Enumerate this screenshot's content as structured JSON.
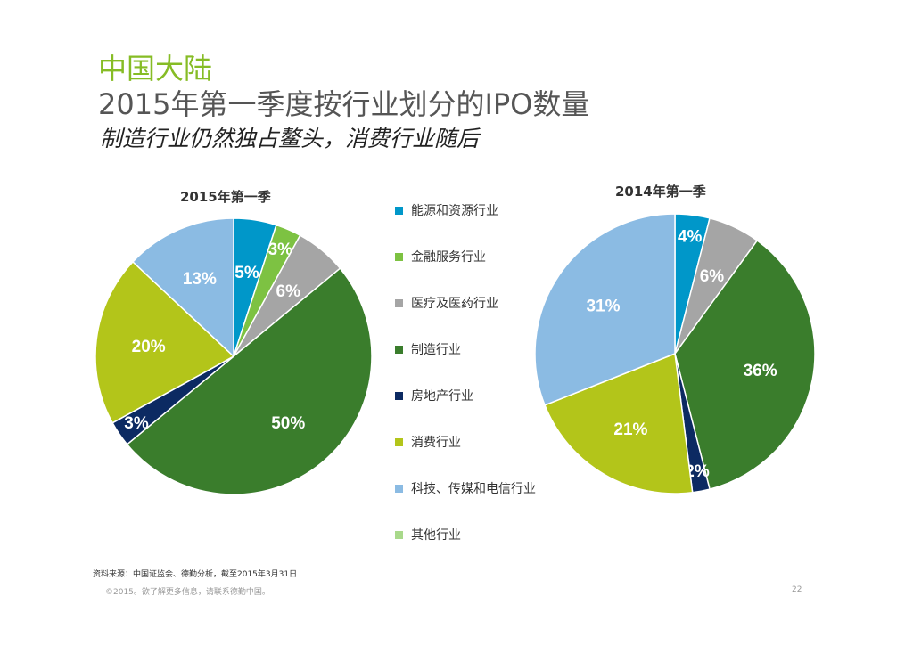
{
  "header": {
    "region": "中国大陆",
    "title": "2015年第一季度按行业划分的IPO数量",
    "subtitle": "制造行业仍然独占鳌头，消费行业随后"
  },
  "chart_data": [
    {
      "type": "pie",
      "title": "2015年第一季",
      "start": "top",
      "direction": "clockwise",
      "slices": [
        {
          "category": "能源和资源行业",
          "value": 5,
          "label": "5%",
          "color": "#0097c9"
        },
        {
          "category": "金融服务行业",
          "value": 3,
          "label": "3%",
          "color": "#7dc242"
        },
        {
          "category": "医疗及医药行业",
          "value": 6,
          "label": "6%",
          "color": "#a5a5a5"
        },
        {
          "category": "制造行业",
          "value": 50,
          "label": "50%",
          "color": "#3a7d2c"
        },
        {
          "category": "房地产行业",
          "value": 3,
          "label": "3%",
          "color": "#0c2a62"
        },
        {
          "category": "消费行业",
          "value": 20,
          "label": "20%",
          "color": "#b3c51a"
        },
        {
          "category": "科技、传媒和电信行业",
          "value": 13,
          "label": "13%",
          "color": "#8bbbe3"
        }
      ]
    },
    {
      "type": "pie",
      "title": "2014年第一季",
      "start": "top",
      "direction": "clockwise",
      "slices": [
        {
          "category": "能源和资源行业",
          "value": 4,
          "label": "4%",
          "color": "#0097c9"
        },
        {
          "category": "医疗及医药行业",
          "value": 6,
          "label": "6%",
          "color": "#a5a5a5"
        },
        {
          "category": "制造行业",
          "value": 36,
          "label": "36%",
          "color": "#3a7d2c"
        },
        {
          "category": "房地产行业",
          "value": 2,
          "label": "2%",
          "color": "#0c2a62"
        },
        {
          "category": "消费行业",
          "value": 21,
          "label": "21%",
          "color": "#b3c51a"
        },
        {
          "category": "科技、传媒和电信行业",
          "value": 31,
          "label": "31%",
          "color": "#8bbbe3"
        }
      ]
    }
  ],
  "legend": [
    {
      "label": "能源和资源行业",
      "color": "#0097c9"
    },
    {
      "label": "金融服务行业",
      "color": "#7dc242"
    },
    {
      "label": "医疗及医药行业",
      "color": "#a5a5a5"
    },
    {
      "label": "制造行业",
      "color": "#3a7d2c"
    },
    {
      "label": "房地产行业",
      "color": "#0c2a62"
    },
    {
      "label": "消费行业",
      "color": "#b3c51a"
    },
    {
      "label": "科技、传媒和电信行业",
      "color": "#8bbbe3"
    },
    {
      "label": "其他行业",
      "color": "#a9d98b"
    }
  ],
  "footer": {
    "source": "资料来源：中国证监会、德勤分析，截至2015年3月31日",
    "copyright": "©2015。欲了解更多信息，请联系德勤中国。",
    "page": "22"
  }
}
